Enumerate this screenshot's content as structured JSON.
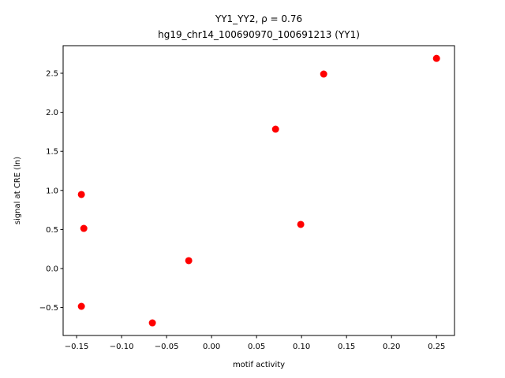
{
  "chart_data": {
    "type": "scatter",
    "title": "YY1_YY2, ρ = 0.76",
    "subtitle": "hg19_chr14_100690970_100691213 (YY1)",
    "x_label": "motif activity",
    "y_label": "signal at CRE (ln)",
    "color": "#ff0000",
    "x": [
      -0.1447,
      -0.142,
      -0.1447,
      -0.0658,
      -0.0254,
      0.0711,
      0.0991,
      0.1246,
      0.25
    ],
    "values": [
      0.948,
      0.514,
      -0.484,
      -0.696,
      0.101,
      1.784,
      0.565,
      2.49,
      2.69
    ],
    "xlim": [
      -0.165,
      0.27
    ],
    "ylim": [
      -0.857,
      2.853
    ],
    "xticks": [
      {
        "value": -0.15,
        "label": "−0.15"
      },
      {
        "value": -0.1,
        "label": "−0.10"
      },
      {
        "value": -0.05,
        "label": "−0.05"
      },
      {
        "value": 0,
        "label": "0.00"
      },
      {
        "value": 0.05,
        "label": "0.05"
      },
      {
        "value": 0.1,
        "label": "0.10"
      },
      {
        "value": 0.15,
        "label": "0.15"
      },
      {
        "value": 0.2,
        "label": "0.20"
      },
      {
        "value": 0.25,
        "label": "0.25"
      }
    ],
    "yticks": [
      {
        "value": -0.5,
        "label": "−0.5"
      },
      {
        "value": 0,
        "label": "0.0"
      },
      0.5,
      {
        "value": 1,
        "label": "1.0"
      },
      1.5,
      {
        "value": 2,
        "label": "2.0"
      },
      2.5
    ]
  }
}
